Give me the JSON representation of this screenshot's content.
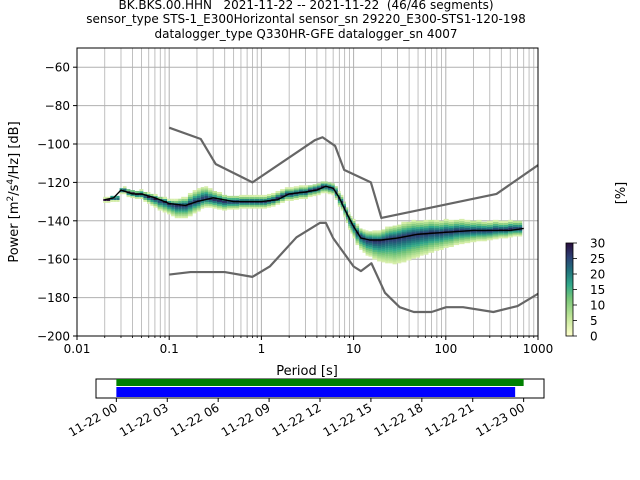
{
  "title_lines": [
    "BK.BKS.00.HHN   2021-11-22 -- 2021-11-22  (46/46 segments)",
    "sensor_type STS-1_E300Horizontal sensor_sn 29220_E300-STS1-120-198",
    "datalogger_type Q330HR-GFE datalogger_sn 4007"
  ],
  "chart_data": {
    "type": "heatmap",
    "xlabel": "Period [s]",
    "ylabel_parts": [
      "Power [m",
      "2",
      "/s",
      "4",
      "/Hz] [dB]"
    ],
    "xscale": "log",
    "xlim": [
      0.01,
      1000
    ],
    "ylim": [
      -200,
      -50
    ],
    "x_tick_labels": [
      "0.01",
      "0.1",
      "1",
      "10",
      "100",
      "1000"
    ],
    "y_tick_labels": [
      "-200",
      "-180",
      "-160",
      "-140",
      "-120",
      "-100",
      "-80",
      "-60"
    ],
    "grid": true,
    "colorbar": {
      "label": "[%]",
      "range": [
        0,
        30
      ],
      "tick_labels": [
        "0",
        "5",
        "10",
        "15",
        "20",
        "25",
        "30"
      ]
    },
    "colors": {
      "nm_curve": "#666666",
      "mean_curve": "#000000",
      "cmap_low": "#ffffcc",
      "cmap_high": "#2a0d3c"
    },
    "mean": {
      "x": [
        0.02,
        0.025,
        0.03,
        0.04,
        0.05,
        0.07,
        0.1,
        0.15,
        0.2,
        0.3,
        0.5,
        0.7,
        1.0,
        1.5,
        2.0,
        3.0,
        4.0,
        5.0,
        6.0,
        7.0,
        8.0,
        10.0,
        12.0,
        15.0,
        20.0,
        30.0,
        50.0,
        100.0,
        200.0,
        500.0,
        700.0
      ],
      "y": [
        -129,
        -128,
        -124,
        -126,
        -126,
        -128,
        -131,
        -132,
        -130,
        -128,
        -130,
        -130,
        -130,
        -129,
        -126,
        -125,
        -124,
        -122,
        -123,
        -128,
        -134,
        -143,
        -149,
        -150,
        -150,
        -149,
        -147,
        -146,
        -145,
        -145,
        -144
      ]
    },
    "nlnm": {
      "x": [
        0.1,
        0.17,
        0.4,
        0.8,
        1.24,
        2.4,
        4.3,
        5.0,
        6.0,
        10.0,
        12.0,
        15.6,
        21.9,
        31.6,
        45.0,
        70.0,
        101.0,
        154.0,
        328.0,
        600.0,
        1000.0
      ],
      "y": [
        -168,
        -166.7,
        -166.7,
        -169.2,
        -163.7,
        -148.6,
        -141.1,
        -141.1,
        -149.0,
        -163.8,
        -166.2,
        -162.1,
        -177.5,
        -185.0,
        -187.5,
        -187.5,
        -185.0,
        -185.0,
        -187.5,
        -184.4,
        -178.0
      ]
    },
    "nhnm": {
      "x": [
        0.1,
        0.22,
        0.32,
        0.8,
        3.8,
        4.6,
        6.3,
        7.9,
        15.4,
        20.0,
        354.8,
        1000.0
      ],
      "y": [
        -91.5,
        -97.4,
        -110.5,
        -120.0,
        -98.0,
        -96.5,
        -101.0,
        -113.5,
        -120.0,
        -138.5,
        -126.0,
        -111.0
      ]
    },
    "density": {
      "x": [
        0.02,
        0.022,
        0.024,
        0.026,
        0.028,
        0.03,
        0.033,
        0.036,
        0.04,
        0.045,
        0.05,
        0.055,
        0.06,
        0.065,
        0.07,
        0.08,
        0.09,
        0.1,
        0.11,
        0.12,
        0.13,
        0.14,
        0.15,
        0.17,
        0.19,
        0.21,
        0.23,
        0.25,
        0.28,
        0.31,
        0.35,
        0.4,
        0.45,
        0.5,
        0.55,
        0.6,
        0.7,
        0.8,
        0.9,
        1.0,
        1.1,
        1.2,
        1.35,
        1.5,
        1.7,
        1.9,
        2.1,
        2.4,
        2.7,
        3.0,
        3.4,
        3.8,
        4.2,
        4.6,
        5.0,
        5.5,
        6.0,
        6.5,
        7.0,
        7.5,
        8.0,
        8.5,
        9.0,
        9.5,
        10.0,
        11.0,
        12.0,
        13.0,
        14.0,
        15.0,
        17.0,
        19.0,
        21.0,
        23.0,
        25.0,
        28.0,
        31.0,
        35.0,
        40.0,
        45.0,
        50.0,
        55.0,
        60.0,
        70.0,
        80.0,
        90.0,
        100.0,
        115.0,
        130.0,
        150.0,
        170.0,
        200.0,
        230.0,
        260.0,
        300.0,
        350.0,
        400.0,
        450.0,
        500.0,
        570.0,
        650.0
      ],
      "center": [
        -129,
        -129,
        -128,
        -128,
        -128,
        -124,
        -124,
        -125,
        -125.5,
        -126,
        -126,
        -127,
        -127.5,
        -128,
        -128.5,
        -129.5,
        -130,
        -131,
        -131.5,
        -132,
        -132,
        -132,
        -132,
        -131,
        -130,
        -129.5,
        -128.5,
        -128,
        -128.5,
        -129,
        -129.5,
        -130,
        -130,
        -130,
        -130,
        -130,
        -130,
        -130,
        -130,
        -130,
        -130,
        -129.5,
        -129,
        -128,
        -127,
        -126,
        -126,
        -125.5,
        -125,
        -125,
        -124,
        -123.5,
        -123,
        -122,
        -122,
        -122.5,
        -123,
        -125,
        -128,
        -130,
        -133,
        -136,
        -139,
        -141,
        -143,
        -146,
        -148,
        -149,
        -150,
        -150,
        -150.5,
        -150.5,
        -150,
        -149.5,
        -149,
        -149,
        -148.5,
        -148,
        -147.5,
        -147,
        -147,
        -146.5,
        -146.5,
        -146,
        -146,
        -146,
        -145.5,
        -145.5,
        -145,
        -145,
        -145,
        -145,
        -145,
        -145,
        -145,
        -144.5,
        -144.5,
        -144.5,
        -144,
        -144,
        -144
      ],
      "spread_low": [
        1.0,
        1.0,
        1.5,
        1.5,
        1.5,
        1.5,
        1.5,
        2.0,
        2.0,
        2.0,
        2.0,
        2.5,
        3.0,
        3.5,
        4.0,
        4.5,
        5.0,
        5.0,
        5.5,
        6.0,
        6.0,
        6.0,
        6.0,
        6.0,
        5.5,
        5.0,
        4.5,
        4.5,
        4.0,
        4.0,
        4.0,
        4.0,
        3.5,
        3.5,
        3.5,
        3.0,
        3.0,
        3.0,
        3.0,
        3.0,
        3.0,
        3.0,
        3.0,
        3.0,
        3.0,
        3.0,
        3.0,
        3.0,
        3.0,
        3.0,
        3.0,
        3.0,
        3.0,
        3.0,
        3.0,
        3.0,
        3.0,
        3.5,
        4.0,
        4.0,
        4.5,
        4.5,
        5.0,
        5.0,
        5.5,
        6.0,
        6.5,
        7.0,
        7.5,
        8.0,
        9.0,
        10.0,
        11.0,
        12.0,
        12.5,
        13.0,
        13.0,
        13.0,
        12.5,
        12.0,
        11.5,
        11.0,
        10.5,
        10.0,
        9.0,
        8.5,
        8.0,
        7.5,
        7.0,
        6.5,
        6.0,
        5.5,
        5.0,
        5.0,
        4.5,
        4.5,
        4.0,
        4.0,
        4.0,
        3.5,
        3.5
      ],
      "spread_high": [
        1.0,
        1.0,
        1.0,
        1.0,
        1.0,
        1.0,
        1.5,
        1.5,
        1.5,
        1.5,
        2.0,
        2.0,
        2.0,
        2.0,
        2.0,
        2.0,
        2.0,
        2.0,
        2.5,
        3.0,
        3.5,
        4.0,
        4.0,
        5.0,
        5.5,
        6.0,
        6.0,
        5.5,
        5.0,
        4.5,
        4.0,
        3.5,
        3.0,
        3.0,
        3.0,
        3.0,
        3.0,
        3.0,
        3.0,
        3.0,
        3.0,
        3.0,
        3.0,
        3.0,
        3.0,
        3.0,
        3.0,
        3.0,
        3.0,
        3.0,
        2.5,
        2.5,
        2.5,
        2.5,
        2.5,
        2.5,
        2.5,
        3.0,
        3.0,
        3.0,
        3.0,
        3.0,
        3.0,
        3.0,
        3.5,
        4.0,
        4.0,
        4.0,
        4.5,
        4.5,
        5.0,
        5.0,
        5.5,
        6.0,
        6.0,
        6.5,
        6.5,
        7.0,
        7.0,
        7.0,
        7.0,
        6.5,
        6.5,
        6.5,
        6.0,
        6.0,
        6.0,
        5.5,
        5.5,
        5.5,
        5.0,
        5.0,
        5.0,
        4.5,
        4.5,
        4.5,
        4.0,
        4.0,
        4.0,
        4.0,
        4.0
      ]
    }
  },
  "timeline": {
    "tick_labels": [
      "11-22 00",
      "11-22 03",
      "11-22 06",
      "11-22 09",
      "11-22 12",
      "11-22 15",
      "11-22 18",
      "11-22 21",
      "11-23 00"
    ],
    "xlim_hours": [
      -1.2,
      25.2
    ],
    "green_bar_hours": [
      0,
      24.0
    ],
    "blue_bar_hours": [
      0,
      23.5
    ],
    "colors": {
      "green": "#008000",
      "blue": "#0000ff"
    }
  }
}
